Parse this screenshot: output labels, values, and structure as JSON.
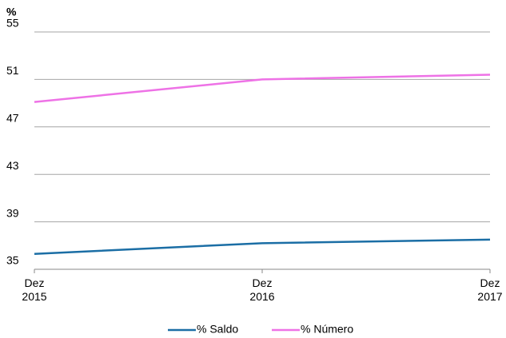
{
  "chart_data": {
    "type": "line",
    "y_unit_label": "%",
    "categories": [
      "Dez 2015",
      "Dez 2016",
      "Dez 2017"
    ],
    "series": [
      {
        "name": "% Saldo",
        "color": "#1b6ea5",
        "values": [
          36.3,
          37.2,
          37.5
        ]
      },
      {
        "name": "% Número",
        "color": "#ee72e6",
        "values": [
          49.1,
          51.0,
          51.4
        ]
      }
    ],
    "ylim": [
      35,
      55
    ],
    "yticks": [
      35,
      39,
      43,
      47,
      51,
      55
    ],
    "grid": true,
    "legend": "bottom"
  }
}
